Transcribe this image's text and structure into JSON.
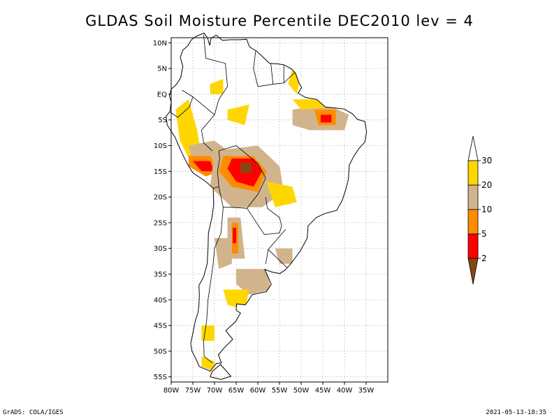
{
  "title": "GLDAS Soil Moisture Percentile DEC2010 lev = 4",
  "map": {
    "lon_range": [
      -80,
      -30
    ],
    "lat_range": [
      -56,
      11
    ],
    "lat_ticks": [
      {
        "value": 10,
        "label": "10N"
      },
      {
        "value": 5,
        "label": "5N"
      },
      {
        "value": 0,
        "label": "EQ"
      },
      {
        "value": -5,
        "label": "5S"
      },
      {
        "value": -10,
        "label": "10S"
      },
      {
        "value": -15,
        "label": "15S"
      },
      {
        "value": -20,
        "label": "20S"
      },
      {
        "value": -25,
        "label": "25S"
      },
      {
        "value": -30,
        "label": "30S"
      },
      {
        "value": -35,
        "label": "35S"
      },
      {
        "value": -40,
        "label": "40S"
      },
      {
        "value": -45,
        "label": "45S"
      },
      {
        "value": -50,
        "label": "50S"
      },
      {
        "value": -55,
        "label": "55S"
      }
    ],
    "lon_ticks": [
      {
        "value": -80,
        "label": "80W"
      },
      {
        "value": -75,
        "label": "75W"
      },
      {
        "value": -70,
        "label": "70W"
      },
      {
        "value": -65,
        "label": "65W"
      },
      {
        "value": -60,
        "label": "60W"
      },
      {
        "value": -55,
        "label": "55W"
      },
      {
        "value": -50,
        "label": "50W"
      },
      {
        "value": -45,
        "label": "45W"
      },
      {
        "value": -40,
        "label": "40W"
      },
      {
        "value": -35,
        "label": "35W"
      }
    ],
    "grid": true
  },
  "legend": {
    "placement": "right",
    "bins": [
      {
        "label": "2",
        "color": "#8b4513"
      },
      {
        "label": "5",
        "color": "#ff0000"
      },
      {
        "label": "10",
        "color": "#ff8c00"
      },
      {
        "label": "20",
        "color": "#d2b48c"
      },
      {
        "label": "30",
        "color": "#ffd700"
      }
    ],
    "top_color": "#ffffff"
  },
  "footer": {
    "left": "GrADS: COLA/IGES",
    "right": "2021-05-13-18:35"
  }
}
